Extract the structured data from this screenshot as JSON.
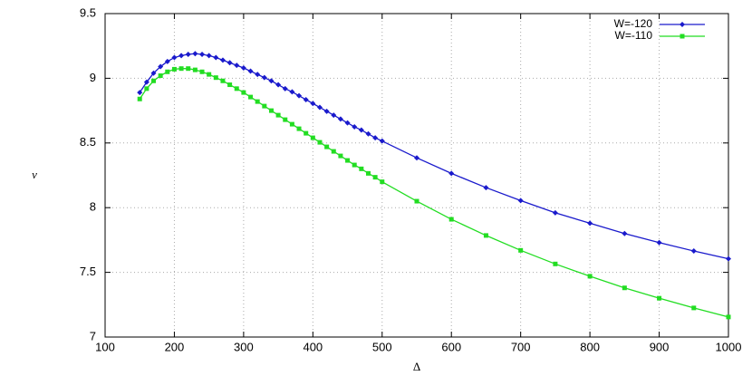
{
  "chart_data": {
    "type": "line",
    "xlabel": "Δ",
    "ylabel": "v",
    "x": [
      150,
      160,
      170,
      180,
      190,
      200,
      210,
      220,
      230,
      240,
      250,
      260,
      270,
      280,
      290,
      300,
      310,
      320,
      330,
      340,
      350,
      360,
      370,
      380,
      390,
      400,
      410,
      420,
      430,
      440,
      450,
      460,
      470,
      480,
      490,
      500,
      550,
      600,
      650,
      700,
      750,
      800,
      850,
      900,
      950,
      1000
    ],
    "series": [
      {
        "name": "W=-120",
        "color": "#1a1acc",
        "marker": "diamond",
        "values": [
          8.89,
          8.97,
          9.04,
          9.09,
          9.13,
          9.16,
          9.175,
          9.185,
          9.19,
          9.185,
          9.175,
          9.16,
          9.14,
          9.12,
          9.1,
          9.08,
          9.055,
          9.03,
          9.005,
          8.98,
          8.95,
          8.92,
          8.895,
          8.865,
          8.835,
          8.805,
          8.775,
          8.745,
          8.715,
          8.685,
          8.655,
          8.625,
          8.6,
          8.57,
          8.54,
          8.515,
          8.385,
          8.265,
          8.155,
          8.055,
          7.96,
          7.88,
          7.8,
          7.73,
          7.665,
          7.605
        ]
      },
      {
        "name": "W=-110",
        "color": "#22dd22",
        "marker": "square",
        "values": [
          8.84,
          8.92,
          8.98,
          9.02,
          9.05,
          9.07,
          9.075,
          9.075,
          9.065,
          9.05,
          9.03,
          9.005,
          8.98,
          8.95,
          8.92,
          8.89,
          8.855,
          8.82,
          8.785,
          8.75,
          8.715,
          8.68,
          8.645,
          8.61,
          8.575,
          8.54,
          8.505,
          8.47,
          8.435,
          8.4,
          8.365,
          8.33,
          8.3,
          8.265,
          8.235,
          8.2,
          8.05,
          7.91,
          7.785,
          7.67,
          7.565,
          7.47,
          7.38,
          7.3,
          7.225,
          7.155
        ]
      }
    ],
    "xlim": [
      100,
      1000
    ],
    "xticks": [
      100,
      200,
      300,
      400,
      500,
      600,
      700,
      800,
      900,
      1000
    ],
    "ylim": [
      7,
      9.5
    ],
    "yticks": [
      7,
      7.5,
      8,
      8.5,
      9,
      9.5
    ],
    "grid": true,
    "legend": "top-right"
  }
}
